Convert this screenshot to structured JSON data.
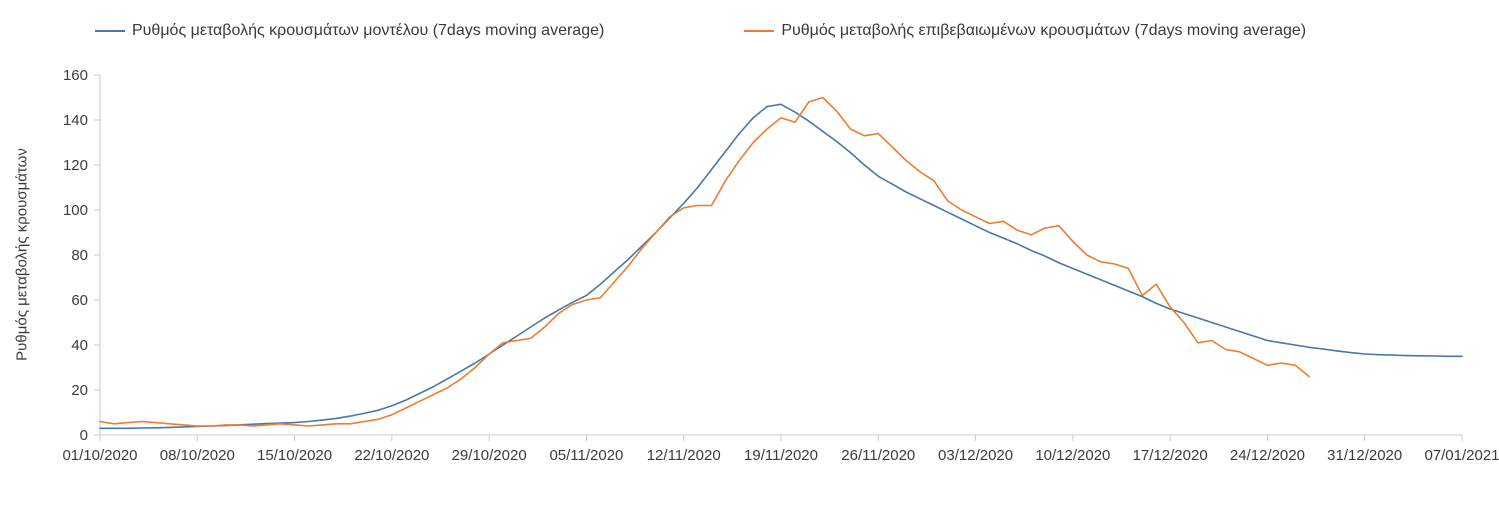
{
  "chart_data": {
    "type": "line",
    "title": "",
    "xlabel": "",
    "ylabel": "Ρυθμός μεταβολής κρουσμάτων",
    "ylim": [
      0,
      160
    ],
    "y_ticks": [
      0,
      20,
      40,
      60,
      80,
      100,
      120,
      140,
      160
    ],
    "x_tick_labels": [
      "01/10/2020",
      "08/10/2020",
      "15/10/2020",
      "22/10/2020",
      "29/10/2020",
      "05/11/2020",
      "12/11/2020",
      "19/11/2020",
      "26/11/2020",
      "03/12/2020",
      "10/12/2020",
      "17/12/2020",
      "24/12/2020",
      "31/12/2020",
      "07/01/2021"
    ],
    "x_tick_day_indices": [
      0,
      7,
      14,
      21,
      28,
      35,
      42,
      49,
      56,
      63,
      70,
      77,
      84,
      91,
      98
    ],
    "x_total_days": 98,
    "x_start_date": "01/10/2020",
    "grid": false,
    "legend_position": "top",
    "axis_color": "#c9c9c9",
    "tick_text_color": "#3c3c3c",
    "series": [
      {
        "id": "model-series",
        "name": "Ρυθμός μεταβολής κρουσμάτων μοντέλου (7days moving average)",
        "color": "#4878a8",
        "start_day_index": 0,
        "values": [
          3,
          3,
          3,
          3.1,
          3.2,
          3.4,
          3.6,
          3.8,
          4,
          4.2,
          4.5,
          4.8,
          5.1,
          5.3,
          5.5,
          6,
          6.6,
          7.4,
          8.4,
          9.6,
          11,
          13,
          15.5,
          18.5,
          21.5,
          25,
          28.5,
          32,
          36,
          40,
          44,
          48,
          52,
          55.5,
          59,
          62,
          67,
          72.5,
          78,
          84,
          90,
          96.5,
          103,
          110,
          118,
          126,
          134,
          141,
          146,
          147,
          143.5,
          139.5,
          135,
          130.5,
          125.5,
          120,
          115,
          111.5,
          108,
          105,
          102,
          99,
          96,
          93,
          90,
          87.5,
          85,
          82,
          79.5,
          76.5,
          74,
          71.5,
          69,
          66.5,
          64,
          61.5,
          58.5,
          56,
          54,
          52,
          50,
          48,
          46,
          44,
          42,
          41,
          40,
          39,
          38.2,
          37.4,
          36.6,
          36,
          35.7,
          35.5,
          35.3,
          35.2,
          35.1,
          35,
          35
        ]
      },
      {
        "id": "confirmed-series",
        "name": "Ρυθμός μεταβολής επιβεβαιωμένων κρουσμάτων (7days moving average)",
        "color": "#ed7d31",
        "start_day_index": 0,
        "values": [
          6,
          5,
          5.5,
          6,
          5.5,
          5,
          4.5,
          4,
          4,
          4.5,
          4.5,
          4,
          4.5,
          5,
          4.5,
          4,
          4.5,
          5,
          5,
          6,
          7,
          9,
          12,
          15,
          18,
          21,
          25,
          30,
          36,
          41,
          42,
          43,
          48,
          54,
          58,
          60,
          61,
          68,
          75,
          83,
          90,
          97,
          101,
          102,
          102,
          113,
          122,
          130,
          136,
          141,
          139,
          148,
          150,
          144,
          136,
          133,
          134,
          128,
          122,
          117,
          113,
          104,
          100,
          97,
          94,
          95,
          91,
          89,
          92,
          93,
          86,
          80,
          77,
          76,
          74,
          62,
          67,
          57,
          50,
          41,
          42,
          38,
          37,
          34,
          31,
          32,
          31,
          26
        ]
      }
    ]
  }
}
